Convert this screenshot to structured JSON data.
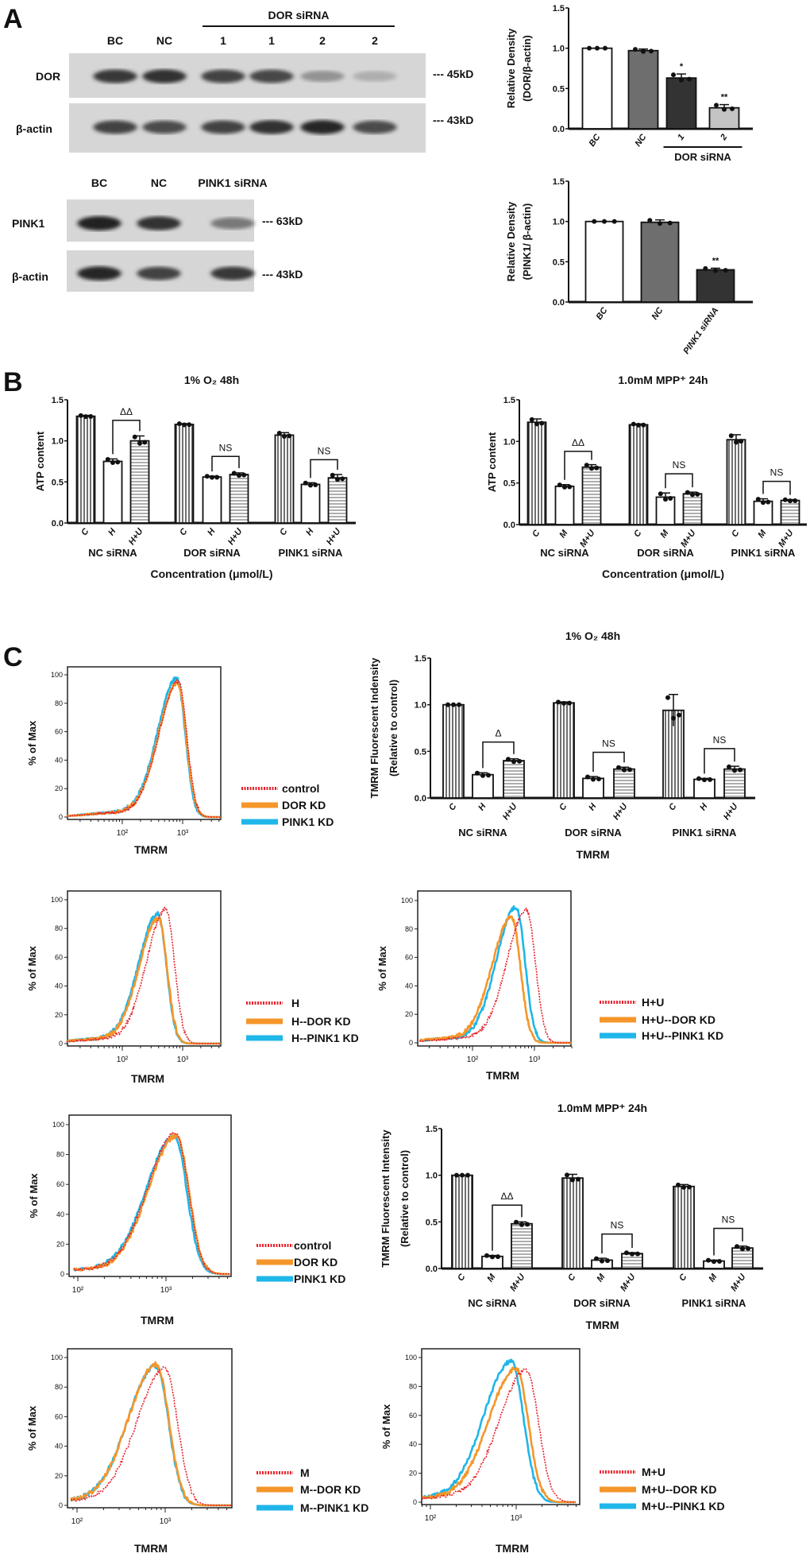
{
  "panels": {
    "a": "A",
    "b": "B",
    "c": "C"
  },
  "blots": [
    {
      "lanes": [
        "BC",
        "NC",
        "1",
        "1",
        "2",
        "2"
      ],
      "group_label": "DOR siRNA",
      "rows": [
        {
          "label": "DOR",
          "marker": "--- 45kD",
          "band_intensity": [
            0.85,
            0.9,
            0.8,
            0.78,
            0.35,
            0.2
          ]
        },
        {
          "label": "β-actin",
          "marker": "--- 43kD",
          "band_intensity": [
            0.8,
            0.75,
            0.8,
            0.9,
            0.95,
            0.75
          ]
        }
      ]
    },
    {
      "lanes": [
        "BC",
        "NC",
        "PINK1 siRNA"
      ],
      "rows": [
        {
          "label": "PINK1",
          "marker": "--- 63kD",
          "band_intensity": [
            0.98,
            0.9,
            0.5
          ]
        },
        {
          "label": "β-actin",
          "marker": "--- 43kD",
          "band_intensity": [
            0.95,
            0.8,
            0.85
          ]
        }
      ]
    }
  ],
  "chart_data": [
    {
      "type": "bar",
      "id": "A1",
      "ylabel": [
        "Relative Density",
        "(DOR/β-actin)"
      ],
      "ylim": [
        0,
        1.5
      ],
      "yticks": [
        0,
        0.5,
        1.0,
        1.5
      ],
      "ytick_labels": [
        "0.0",
        "0.5",
        "1.0",
        "1.5"
      ],
      "categories": [
        "BC",
        "NC",
        "1",
        "2"
      ],
      "values": [
        1.0,
        0.97,
        0.63,
        0.26
      ],
      "errors": [
        0.0,
        0.02,
        0.05,
        0.04
      ],
      "colors": [
        "#ffffff",
        "#6e6e6e",
        "#333333",
        "#c4c4c4"
      ],
      "annotations": [
        {
          "index": 2,
          "text": "*"
        },
        {
          "index": 3,
          "text": "**"
        }
      ],
      "group_labels": [
        {
          "from": 2,
          "to": 3,
          "text": "DOR siRNA"
        }
      ]
    },
    {
      "type": "bar",
      "id": "A2",
      "ylabel": [
        "Relative Density",
        "(PINK1/ β-actin)"
      ],
      "ylim": [
        0,
        1.5
      ],
      "yticks": [
        0,
        0.5,
        1.0,
        1.5
      ],
      "ytick_labels": [
        "0.0",
        "0.5",
        "1.0",
        "1.5"
      ],
      "categories": [
        "BC",
        "NC",
        "PINK1 siRNA"
      ],
      "values": [
        1.0,
        0.99,
        0.4
      ],
      "errors": [
        0.0,
        0.03,
        0.02
      ],
      "colors": [
        "#ffffff",
        "#6e6e6e",
        "#333333"
      ],
      "annotations": [
        {
          "index": 2,
          "text": "**"
        }
      ]
    },
    {
      "type": "bar",
      "id": "B1",
      "title": "1% O₂  48h",
      "ylabel": [
        "ATP content"
      ],
      "xlabel": "Concentration (μmol/L)",
      "ylim": [
        0,
        1.5
      ],
      "yticks": [
        0,
        0.5,
        1.0,
        1.5
      ],
      "ytick_labels": [
        "0.0",
        "0.5",
        "1.0",
        "1.5"
      ],
      "categories": [
        "C",
        "H",
        "H+U",
        "C",
        "H",
        "H+U",
        "C",
        "H",
        "H+U"
      ],
      "groups": [
        "NC siRNA",
        "DOR siRNA",
        "PINK1 siRNA"
      ],
      "values": [
        1.3,
        0.75,
        1.0,
        1.2,
        0.56,
        0.59,
        1.07,
        0.47,
        0.55
      ],
      "errors": [
        0.01,
        0.03,
        0.06,
        0.01,
        0.01,
        0.02,
        0.03,
        0.02,
        0.04
      ],
      "patterns": [
        "vertical",
        "none",
        "horizontal"
      ],
      "brackets": [
        {
          "from": 1,
          "to": 2,
          "y": 1.25,
          "text": "ΔΔ"
        },
        {
          "from": 4,
          "to": 5,
          "y": 0.81,
          "text": "NS"
        },
        {
          "from": 7,
          "to": 8,
          "y": 0.77,
          "text": "NS"
        }
      ]
    },
    {
      "type": "bar",
      "id": "B2",
      "title": "1.0mM MPP⁺ 24h",
      "ylabel": [
        "ATP content"
      ],
      "xlabel": "Concentration (μmol/L)",
      "ylim": [
        0,
        1.5
      ],
      "yticks": [
        0,
        0.5,
        1.0,
        1.5
      ],
      "ytick_labels": [
        "0.0",
        "0.5",
        "1.0",
        "1.5"
      ],
      "categories": [
        "C",
        "M",
        "M+U",
        "C",
        "M",
        "M+U",
        "C",
        "M",
        "M+U"
      ],
      "groups": [
        "NC siRNA",
        "DOR siRNA",
        "PINK1 siRNA"
      ],
      "values": [
        1.23,
        0.46,
        0.69,
        1.2,
        0.33,
        0.37,
        1.02,
        0.28,
        0.29
      ],
      "errors": [
        0.04,
        0.02,
        0.03,
        0.01,
        0.05,
        0.02,
        0.06,
        0.03,
        0.01
      ],
      "patterns": [
        "vertical",
        "none",
        "horizontal"
      ],
      "brackets": [
        {
          "from": 1,
          "to": 2,
          "y": 0.88,
          "text": "ΔΔ"
        },
        {
          "from": 4,
          "to": 5,
          "y": 0.61,
          "text": "NS"
        },
        {
          "from": 7,
          "to": 8,
          "y": 0.52,
          "text": "NS"
        }
      ]
    },
    {
      "type": "bar",
      "id": "C1",
      "title": "1% O₂  48h",
      "ylabel": [
        "TMRM Fluorescent Indensity",
        "(Relative to control)"
      ],
      "xlabel": "TMRM",
      "ylim": [
        0,
        1.5
      ],
      "yticks": [
        0,
        0.5,
        1.0,
        1.5
      ],
      "ytick_labels": [
        "0.0",
        "0.5",
        "1.0",
        "1.5"
      ],
      "categories": [
        "C",
        "H",
        "H+U",
        "C",
        "H",
        "H+U",
        "C",
        "H",
        "H+U"
      ],
      "groups": [
        "NC siRNA",
        "DOR siRNA",
        "PINK1 siRNA"
      ],
      "values": [
        1.0,
        0.25,
        0.4,
        1.02,
        0.21,
        0.31,
        0.94,
        0.2,
        0.31
      ],
      "errors": [
        0.0,
        0.02,
        0.02,
        0.01,
        0.02,
        0.02,
        0.17,
        0.01,
        0.03
      ],
      "patterns": [
        "vertical",
        "none",
        "horizontal"
      ],
      "brackets": [
        {
          "from": 1,
          "to": 2,
          "y": 0.6,
          "text": "Δ"
        },
        {
          "from": 4,
          "to": 5,
          "y": 0.49,
          "text": "NS"
        },
        {
          "from": 7,
          "to": 8,
          "y": 0.53,
          "text": "NS"
        }
      ]
    },
    {
      "type": "bar",
      "id": "C2",
      "title": "1.0mM MPP⁺ 24h",
      "ylabel": [
        "TMRM Fluorescent Intensity",
        "(Relative to control)"
      ],
      "xlabel": "TMRM",
      "ylim": [
        0,
        1.5
      ],
      "yticks": [
        0,
        0.5,
        1.0,
        1.5
      ],
      "ytick_labels": [
        "0.0",
        "0.5",
        "1.0",
        "1.5"
      ],
      "categories": [
        "C",
        "M",
        "M+U",
        "C",
        "M",
        "M+U",
        "C",
        "M",
        "M+U"
      ],
      "groups": [
        "NC siRNA",
        "DOR siRNA",
        "PINK1 siRNA"
      ],
      "values": [
        1.0,
        0.13,
        0.48,
        0.97,
        0.09,
        0.16,
        0.88,
        0.08,
        0.22
      ],
      "errors": [
        0.0,
        0.01,
        0.02,
        0.04,
        0.02,
        0.01,
        0.02,
        0.01,
        0.02
      ],
      "patterns": [
        "vertical",
        "none",
        "horizontal"
      ],
      "brackets": [
        {
          "from": 1,
          "to": 2,
          "y": 0.68,
          "text": "ΔΔ"
        },
        {
          "from": 4,
          "to": 5,
          "y": 0.37,
          "text": "NS"
        },
        {
          "from": 7,
          "to": 8,
          "y": 0.43,
          "text": "NS"
        }
      ]
    },
    {
      "type": "line",
      "id": "F1",
      "xlabel": "TMRM",
      "ylabel": "% of Max",
      "xscale": "log",
      "xlim": [
        12,
        4300
      ],
      "ylim": [
        0,
        100
      ],
      "yticks": [
        0,
        20,
        40,
        60,
        80,
        100
      ],
      "ytick_labels": [
        "0",
        "20",
        "40",
        "60",
        "80",
        "100"
      ],
      "xticks": [
        100,
        1000
      ],
      "xtick_labels": [
        "10²",
        "10³"
      ],
      "series": [
        {
          "name": "control",
          "peak_x": 850,
          "peak_y": 95,
          "color": "#e8202a",
          "style": "dotted"
        },
        {
          "name": "DOR KD",
          "peak_x": 830,
          "peak_y": 94,
          "color": "#f5962a",
          "style": "solid"
        },
        {
          "name": "PINK1 KD",
          "peak_x": 800,
          "peak_y": 97,
          "color": "#1fb6e9",
          "style": "solid"
        }
      ]
    },
    {
      "type": "line",
      "id": "F2",
      "xlabel": "TMRM",
      "ylabel": "% of Max",
      "xscale": "log",
      "xlim": [
        12,
        4300
      ],
      "ylim": [
        0,
        100
      ],
      "yticks": [
        0,
        20,
        40,
        60,
        80,
        100
      ],
      "ytick_labels": [
        "0",
        "20",
        "40",
        "60",
        "80",
        "100"
      ],
      "xticks": [
        100,
        1000
      ],
      "xtick_labels": [
        "10²",
        "10³"
      ],
      "series": [
        {
          "name": "H",
          "peak_x": 530,
          "peak_y": 93,
          "color": "#e8202a",
          "style": "dotted"
        },
        {
          "name": "H--DOR KD",
          "peak_x": 400,
          "peak_y": 87,
          "color": "#f5962a",
          "style": "solid"
        },
        {
          "name": "H--PINK1 KD",
          "peak_x": 390,
          "peak_y": 90,
          "color": "#1fb6e9",
          "style": "solid"
        }
      ]
    },
    {
      "type": "line",
      "id": "F3",
      "xlabel": "TMRM",
      "ylabel": "% of Max",
      "xscale": "log",
      "xlim": [
        14,
        4000
      ],
      "ylim": [
        0,
        100
      ],
      "yticks": [
        0,
        20,
        40,
        60,
        80,
        100
      ],
      "ytick_labels": [
        "0",
        "20",
        "40",
        "60",
        "80",
        "100"
      ],
      "xticks": [
        100,
        1000
      ],
      "xtick_labels": [
        "10²",
        "10³"
      ],
      "series": [
        {
          "name": "H+U",
          "peak_x": 750,
          "peak_y": 93,
          "color": "#e8202a",
          "style": "dotted"
        },
        {
          "name": "H+U--DOR KD",
          "peak_x": 430,
          "peak_y": 88,
          "color": "#f5962a",
          "style": "solid"
        },
        {
          "name": "H+U--PINK1 KD",
          "peak_x": 510,
          "peak_y": 95,
          "color": "#1fb6e9",
          "style": "solid"
        }
      ]
    },
    {
      "type": "line",
      "id": "F4",
      "xlabel": "TMRM",
      "ylabel": "% of Max",
      "xscale": "log",
      "xlim": [
        90,
        5400
      ],
      "ylim": [
        0,
        100
      ],
      "yticks": [
        0,
        20,
        40,
        60,
        80,
        100
      ],
      "ytick_labels": [
        "0",
        "20",
        "40",
        "60",
        "80",
        "100"
      ],
      "xticks": [
        100,
        1000
      ],
      "xtick_labels": [
        "10²",
        "10³"
      ],
      "series": [
        {
          "name": "control",
          "peak_x": 1300,
          "peak_y": 94,
          "color": "#e8202a",
          "style": "dotted"
        },
        {
          "name": "DOR KD",
          "peak_x": 1320,
          "peak_y": 92,
          "color": "#f5962a",
          "style": "solid"
        },
        {
          "name": "PINK1 KD",
          "peak_x": 1250,
          "peak_y": 92,
          "color": "#1fb6e9",
          "style": "solid"
        }
      ]
    },
    {
      "type": "line",
      "id": "F5",
      "xlabel": "TMRM",
      "ylabel": "% of Max",
      "xscale": "log",
      "xlim": [
        85,
        5700
      ],
      "ylim": [
        0,
        100
      ],
      "yticks": [
        0,
        20,
        40,
        60,
        80,
        100
      ],
      "ytick_labels": [
        "0",
        "20",
        "40",
        "60",
        "80",
        "100"
      ],
      "xticks": [
        100,
        1000
      ],
      "xtick_labels": [
        "10²",
        "10³"
      ],
      "series": [
        {
          "name": "M",
          "peak_x": 1000,
          "peak_y": 92,
          "color": "#e8202a",
          "style": "dotted"
        },
        {
          "name": "M--DOR KD",
          "peak_x": 800,
          "peak_y": 95,
          "color": "#f5962a",
          "style": "solid"
        },
        {
          "name": "M--PINK1 KD",
          "peak_x": 790,
          "peak_y": 94,
          "color": "#1fb6e9",
          "style": "solid"
        }
      ]
    },
    {
      "type": "line",
      "id": "F6",
      "xlabel": "TMRM",
      "ylabel": "% of Max",
      "xscale": "log",
      "xlim": [
        80,
        5000
      ],
      "ylim": [
        0,
        100
      ],
      "yticks": [
        0,
        20,
        40,
        60,
        80,
        100
      ],
      "ytick_labels": [
        "0",
        "20",
        "40",
        "60",
        "80",
        "100"
      ],
      "xticks": [
        100,
        1000
      ],
      "xtick_labels": [
        "10²",
        "10³"
      ],
      "series": [
        {
          "name": "M+U",
          "peak_x": 1320,
          "peak_y": 91,
          "color": "#e8202a",
          "style": "dotted"
        },
        {
          "name": "M+U--DOR KD",
          "peak_x": 1000,
          "peak_y": 92,
          "color": "#f5962a",
          "style": "solid"
        },
        {
          "name": "M+U--PINK1 KD",
          "peak_x": 880,
          "peak_y": 97,
          "color": "#1fb6e9",
          "style": "solid"
        }
      ]
    }
  ]
}
